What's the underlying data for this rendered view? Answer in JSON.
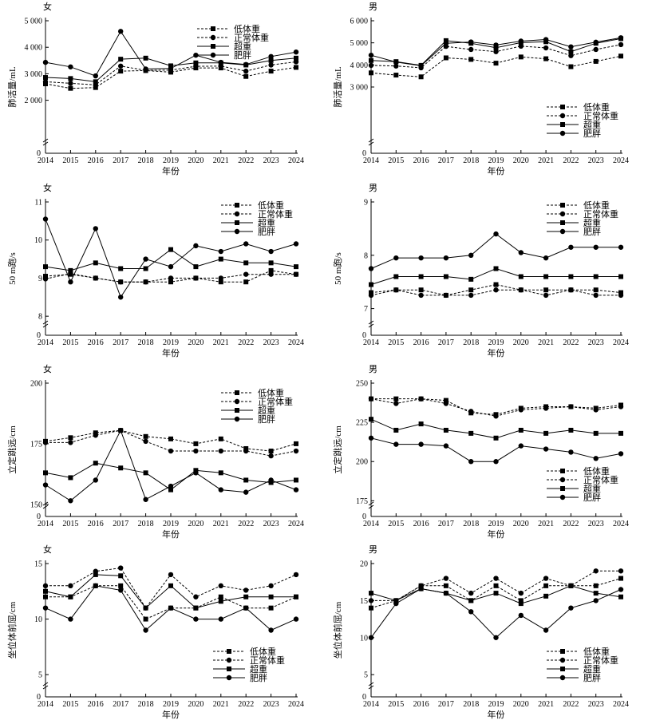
{
  "chart_data": [
    {
      "type": "line",
      "title": "女",
      "xlabel": "年份",
      "ylabel": "肺活量/mL",
      "x": [
        "2014",
        "2015",
        "2016",
        "2017",
        "2018",
        "2019",
        "2020",
        "2021",
        "2022",
        "2023",
        "2024"
      ],
      "ylim": [
        0,
        5000
      ],
      "yticks": [
        "2 000",
        "3 000",
        "4 000",
        "5 000"
      ],
      "ytick_values": [
        2000,
        3000,
        4000,
        5000
      ],
      "axis_break": true,
      "legend_position": "top-right",
      "series": [
        {
          "name": "低体重",
          "style": "dashed",
          "marker": "square",
          "values": [
            2620,
            2450,
            2480,
            3100,
            3120,
            3060,
            3220,
            3220,
            2900,
            3100,
            3240
          ]
        },
        {
          "name": "正常体重",
          "style": "dashed",
          "marker": "circle",
          "values": [
            2700,
            2640,
            2580,
            3290,
            3130,
            3140,
            3280,
            3290,
            3100,
            3330,
            3450
          ]
        },
        {
          "name": "超重",
          "style": "solid",
          "marker": "square",
          "values": [
            2860,
            2820,
            2700,
            3550,
            3590,
            3300,
            3410,
            3410,
            3330,
            3500,
            3590
          ]
        },
        {
          "name": "肥胖",
          "style": "solid",
          "marker": "circle",
          "values": [
            3430,
            3260,
            2920,
            4600,
            3180,
            3200,
            3700,
            3430,
            3350,
            3650,
            3820
          ]
        }
      ]
    },
    {
      "type": "line",
      "title": "男",
      "xlabel": "年份",
      "ylabel": "肺活量/mL",
      "x": [
        "2014",
        "2015",
        "2016",
        "2017",
        "2018",
        "2019",
        "2020",
        "2021",
        "2022",
        "2023",
        "2024"
      ],
      "ylim": [
        0,
        6000
      ],
      "yticks": [
        "3 000",
        "4 000",
        "5 000",
        "6 000"
      ],
      "ytick_values": [
        3000,
        4000,
        5000,
        6000
      ],
      "axis_break": true,
      "legend_position": "bottom-right",
      "series": [
        {
          "name": "低体重",
          "style": "dashed",
          "marker": "square",
          "values": [
            3640,
            3540,
            3460,
            4320,
            4250,
            4080,
            4360,
            4280,
            3920,
            4160,
            4400
          ]
        },
        {
          "name": "正常体重",
          "style": "dashed",
          "marker": "circle",
          "values": [
            3980,
            3950,
            3870,
            4840,
            4700,
            4600,
            4850,
            4770,
            4420,
            4700,
            4920
          ]
        },
        {
          "name": "超重",
          "style": "solid",
          "marker": "square",
          "values": [
            4200,
            4150,
            3980,
            5100,
            4980,
            4780,
            5010,
            5050,
            4600,
            4980,
            5190
          ]
        },
        {
          "name": "肥胖",
          "style": "solid",
          "marker": "circle",
          "values": [
            4440,
            4130,
            3960,
            4980,
            5040,
            4900,
            5080,
            5150,
            4820,
            5030,
            5230
          ]
        }
      ]
    },
    {
      "type": "line",
      "title": "女",
      "xlabel": "年份",
      "ylabel": "50 m跑/s",
      "x": [
        "2014",
        "2015",
        "2016",
        "2017",
        "2018",
        "2019",
        "2020",
        "2021",
        "2022",
        "2023",
        "2024"
      ],
      "ylim": [
        7.5,
        11
      ],
      "yticks": [
        "8",
        "9",
        "10",
        "11"
      ],
      "ytick_values": [
        8,
        9,
        10,
        11
      ],
      "axis_break": true,
      "legend_position": "top-right",
      "series": [
        {
          "name": "低体重",
          "style": "dashed",
          "marker": "square",
          "values": [
            9.05,
            9.1,
            9.0,
            8.9,
            8.9,
            8.9,
            9.0,
            8.9,
            8.9,
            9.2,
            9.1
          ]
        },
        {
          "name": "正常体重",
          "style": "dashed",
          "marker": "circle",
          "values": [
            8.98,
            9.12,
            9.0,
            8.9,
            8.9,
            9.0,
            9.0,
            9.0,
            9.1,
            9.1,
            9.1
          ]
        },
        {
          "name": "超重",
          "style": "solid",
          "marker": "square",
          "values": [
            9.3,
            9.2,
            9.4,
            9.25,
            9.25,
            9.75,
            9.3,
            9.5,
            9.4,
            9.4,
            9.3
          ]
        },
        {
          "name": "肥胖",
          "style": "solid",
          "marker": "circle",
          "values": [
            10.55,
            8.9,
            10.3,
            8.5,
            9.5,
            9.3,
            9.85,
            9.7,
            9.9,
            9.7,
            9.9
          ]
        }
      ]
    },
    {
      "type": "line",
      "title": "男",
      "xlabel": "年份",
      "ylabel": "50 m跑/s",
      "x": [
        "2014",
        "2015",
        "2016",
        "2017",
        "2018",
        "2019",
        "2020",
        "2021",
        "2022",
        "2023",
        "2024"
      ],
      "ylim": [
        6.5,
        9
      ],
      "yticks": [
        "7",
        "8",
        "9"
      ],
      "ytick_values": [
        7,
        8,
        9
      ],
      "axis_break": true,
      "legend_position": "top-right",
      "series": [
        {
          "name": "低体重",
          "style": "dashed",
          "marker": "square",
          "values": [
            7.3,
            7.35,
            7.35,
            7.25,
            7.35,
            7.45,
            7.35,
            7.35,
            7.35,
            7.35,
            7.3
          ]
        },
        {
          "name": "正常体重",
          "style": "dashed",
          "marker": "circle",
          "values": [
            7.25,
            7.35,
            7.25,
            7.25,
            7.25,
            7.35,
            7.35,
            7.25,
            7.35,
            7.25,
            7.25
          ]
        },
        {
          "name": "超重",
          "style": "solid",
          "marker": "square",
          "values": [
            7.45,
            7.6,
            7.6,
            7.6,
            7.55,
            7.75,
            7.6,
            7.6,
            7.6,
            7.6,
            7.6
          ]
        },
        {
          "name": "肥胖",
          "style": "solid",
          "marker": "circle",
          "values": [
            7.75,
            7.95,
            7.95,
            7.95,
            8.0,
            8.4,
            8.05,
            7.95,
            8.15,
            8.15,
            8.15
          ]
        }
      ]
    },
    {
      "type": "line",
      "title": "女",
      "xlabel": "年份",
      "ylabel": "立定跳远/cm",
      "x": [
        "2014",
        "2015",
        "2016",
        "2017",
        "2018",
        "2019",
        "2020",
        "2021",
        "2022",
        "2023",
        "2024"
      ],
      "ylim": [
        145,
        200
      ],
      "yticks": [
        "150",
        "175",
        "200"
      ],
      "ytick_values": [
        150,
        175,
        200
      ],
      "axis_break": true,
      "legend_position": "top-right",
      "series": [
        {
          "name": "低体重",
          "style": "dashed",
          "marker": "square",
          "values": [
            176,
            177.5,
            179.5,
            180.5,
            178,
            177,
            175,
            177,
            173,
            172,
            175
          ]
        },
        {
          "name": "正常体重",
          "style": "dashed",
          "marker": "circle",
          "values": [
            175.5,
            175.5,
            178.5,
            180.5,
            176,
            172,
            172,
            172,
            172,
            170,
            172
          ]
        },
        {
          "name": "超重",
          "style": "solid",
          "marker": "square",
          "values": [
            163,
            161,
            167,
            165,
            163,
            156,
            164,
            163,
            160,
            159,
            160
          ]
        },
        {
          "name": "肥胖",
          "style": "solid",
          "marker": "circle",
          "values": [
            158,
            151.5,
            160,
            180.5,
            152,
            157.5,
            163,
            156,
            155,
            160,
            156
          ]
        }
      ]
    },
    {
      "type": "line",
      "title": "男",
      "xlabel": "年份",
      "ylabel": "立定跳远/cm",
      "x": [
        "2014",
        "2015",
        "2016",
        "2017",
        "2018",
        "2019",
        "2020",
        "2021",
        "2022",
        "2023",
        "2024"
      ],
      "ylim": [
        165,
        250
      ],
      "yticks": [
        "175",
        "200",
        "225",
        "250"
      ],
      "ytick_values": [
        175,
        200,
        225,
        250
      ],
      "axis_break": true,
      "legend_position": "bottom-right",
      "series": [
        {
          "name": "低体重",
          "style": "dashed",
          "marker": "square",
          "values": [
            240,
            240,
            240,
            239,
            231,
            230,
            234,
            235,
            235,
            234,
            236
          ]
        },
        {
          "name": "正常体重",
          "style": "dashed",
          "marker": "circle",
          "values": [
            240,
            237,
            240,
            237,
            232,
            229,
            233,
            234,
            235,
            233,
            235
          ]
        },
        {
          "name": "超重",
          "style": "solid",
          "marker": "square",
          "values": [
            227,
            220,
            224,
            220,
            218,
            215,
            220,
            218,
            220,
            218,
            218
          ]
        },
        {
          "name": "肥胖",
          "style": "solid",
          "marker": "circle",
          "values": [
            215,
            211,
            211,
            210,
            200,
            200,
            210,
            208,
            206,
            202,
            205
          ]
        }
      ]
    },
    {
      "type": "line",
      "title": "女",
      "xlabel": "年份",
      "ylabel": "坐位体前屈/cm",
      "x": [
        "2014",
        "2015",
        "2016",
        "2017",
        "2018",
        "2019",
        "2020",
        "2021",
        "2022",
        "2023",
        "2024"
      ],
      "ylim": [
        3,
        15
      ],
      "yticks": [
        "5",
        "10",
        "15"
      ],
      "ytick_values": [
        5,
        10,
        15
      ],
      "axis_break": true,
      "legend_position": "bottom-right",
      "series": [
        {
          "name": "低体重",
          "style": "dashed",
          "marker": "square",
          "values": [
            12,
            12,
            13,
            13,
            10,
            11,
            11,
            12,
            11,
            11,
            12
          ]
        },
        {
          "name": "正常体重",
          "style": "dashed",
          "marker": "circle",
          "values": [
            13,
            13,
            14.3,
            14.6,
            11,
            14,
            12,
            13,
            12.6,
            13,
            14
          ]
        },
        {
          "name": "超重",
          "style": "solid",
          "marker": "square",
          "values": [
            12.5,
            12,
            14,
            13.9,
            11,
            13,
            11,
            11.6,
            12,
            12,
            12
          ]
        },
        {
          "name": "肥胖",
          "style": "solid",
          "marker": "circle",
          "values": [
            11,
            10,
            13,
            12.6,
            9,
            11,
            10,
            10,
            11,
            9,
            10
          ]
        }
      ]
    },
    {
      "type": "line",
      "title": "男",
      "xlabel": "年份",
      "ylabel": "坐位体前屈/cm",
      "x": [
        "2014",
        "2015",
        "2016",
        "2017",
        "2018",
        "2019",
        "2020",
        "2021",
        "2022",
        "2023",
        "2024"
      ],
      "ylim": [
        2,
        20
      ],
      "yticks": [
        "5",
        "10",
        "15",
        "20"
      ],
      "ytick_values": [
        5,
        10,
        15,
        20
      ],
      "axis_break": true,
      "legend_position": "bottom-right",
      "series": [
        {
          "name": "低体重",
          "style": "dashed",
          "marker": "square",
          "values": [
            14,
            15,
            17,
            17,
            15,
            17,
            15,
            17,
            17,
            17,
            18
          ]
        },
        {
          "name": "正常体重",
          "style": "dashed",
          "marker": "circle",
          "values": [
            15,
            15,
            17,
            18,
            16,
            18,
            16,
            18,
            17,
            19,
            19
          ]
        },
        {
          "name": "超重",
          "style": "solid",
          "marker": "square",
          "values": [
            16,
            15,
            16.6,
            16,
            15,
            16,
            14.6,
            15.6,
            17,
            16,
            15.5
          ]
        },
        {
          "name": "肥胖",
          "style": "solid",
          "marker": "circle",
          "values": [
            10,
            14.6,
            16.6,
            16,
            13.5,
            10,
            13,
            11,
            14,
            15,
            16.5
          ]
        }
      ]
    }
  ]
}
